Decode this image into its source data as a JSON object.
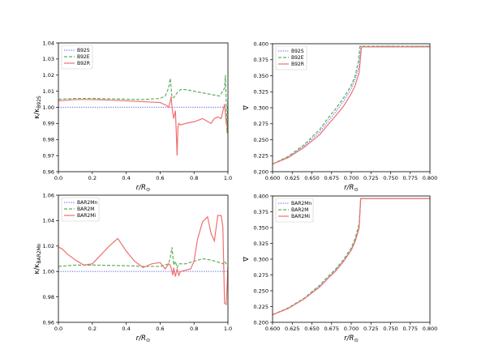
{
  "colors": {
    "blue": "#7070f0",
    "green": "#5fae5f",
    "red": "#f07070"
  },
  "chart_data": [
    {
      "id": "top-left",
      "type": "line",
      "xlabel": "r/R⊙",
      "ylabel": "κ/κB92S",
      "xlim": [
        0,
        1
      ],
      "ylim": [
        0.96,
        1.04
      ],
      "xticks": [
        "0.0",
        "0.2",
        "0.4",
        "0.6",
        "0.8",
        "1.0"
      ],
      "yticks": [
        "0.96",
        "0.97",
        "0.98",
        "0.99",
        "1.00",
        "1.01",
        "1.02",
        "1.03",
        "1.04"
      ],
      "legend_position": "top-left",
      "series": [
        {
          "name": "B92S",
          "style": "dotted",
          "color": "blue",
          "x": [
            0,
            1
          ],
          "y": [
            1.0,
            1.0
          ]
        },
        {
          "name": "B92E",
          "style": "dashed",
          "color": "green",
          "x": [
            0,
            0.1,
            0.2,
            0.3,
            0.4,
            0.5,
            0.6,
            0.63,
            0.65,
            0.66,
            0.67,
            0.68,
            0.7,
            0.72,
            0.75,
            0.8,
            0.85,
            0.9,
            0.95,
            0.97,
            0.98,
            0.985,
            0.99,
            0.995,
            1.0
          ],
          "y": [
            1.005,
            1.0055,
            1.0055,
            1.0053,
            1.005,
            1.0048,
            1.0055,
            1.007,
            1.012,
            1.018,
            1.006,
            1.006,
            1.009,
            1.011,
            1.011,
            1.01,
            1.009,
            1.008,
            1.007,
            1.01,
            1.012,
            1.02,
            1.003,
            0.984,
            1.005
          ]
        },
        {
          "name": "B92R",
          "style": "solid",
          "color": "red",
          "x": [
            0,
            0.1,
            0.2,
            0.3,
            0.4,
            0.5,
            0.6,
            0.64,
            0.65,
            0.66,
            0.665,
            0.67,
            0.68,
            0.69,
            0.695,
            0.7,
            0.705,
            0.71,
            0.72,
            0.75,
            0.8,
            0.85,
            0.9,
            0.92,
            0.94,
            0.96,
            0.98,
            0.985,
            0.99,
            0.995,
            1.0
          ],
          "y": [
            1.004,
            1.0048,
            1.0048,
            1.0045,
            1.004,
            1.0035,
            1.003,
            1.001,
            1.0,
            1.004,
            1.0065,
            1.0,
            0.993,
            0.998,
            0.985,
            0.97,
            0.988,
            0.99,
            0.989,
            0.99,
            0.991,
            0.993,
            0.99,
            0.993,
            0.994,
            0.993,
            1.002,
            0.996,
            0.99,
            0.988,
            0.986
          ]
        }
      ]
    },
    {
      "id": "top-right",
      "type": "line",
      "xlabel": "r/R⊙",
      "ylabel": "∇",
      "xlim": [
        0.6,
        0.8
      ],
      "ylim": [
        0.2,
        0.4
      ],
      "xticks": [
        "0.600",
        "0.625",
        "0.650",
        "0.675",
        "0.700",
        "0.725",
        "0.750",
        "0.775",
        "0.800"
      ],
      "yticks": [
        "0.200",
        "0.225",
        "0.250",
        "0.275",
        "0.300",
        "0.325",
        "0.350",
        "0.375",
        "0.400"
      ],
      "legend_position": "top-left",
      "series": [
        {
          "name": "B92S",
          "style": "dotted",
          "color": "blue",
          "x": [
            0.6,
            0.62,
            0.64,
            0.66,
            0.67,
            0.68,
            0.69,
            0.7,
            0.705,
            0.71,
            0.712,
            0.8
          ],
          "y": [
            0.212,
            0.223,
            0.24,
            0.262,
            0.278,
            0.293,
            0.31,
            0.33,
            0.345,
            0.365,
            0.396,
            0.396
          ]
        },
        {
          "name": "B92E",
          "style": "dashed",
          "color": "green",
          "x": [
            0.6,
            0.62,
            0.64,
            0.66,
            0.67,
            0.68,
            0.69,
            0.7,
            0.705,
            0.709,
            0.711,
            0.8
          ],
          "y": [
            0.212,
            0.224,
            0.242,
            0.266,
            0.283,
            0.298,
            0.315,
            0.335,
            0.35,
            0.372,
            0.396,
            0.396
          ]
        },
        {
          "name": "B92R",
          "style": "solid",
          "color": "red",
          "x": [
            0.6,
            0.62,
            0.64,
            0.66,
            0.67,
            0.68,
            0.69,
            0.7,
            0.705,
            0.71,
            0.713,
            0.8
          ],
          "y": [
            0.212,
            0.222,
            0.238,
            0.258,
            0.273,
            0.287,
            0.302,
            0.322,
            0.335,
            0.355,
            0.395,
            0.395
          ]
        }
      ]
    },
    {
      "id": "bottom-left",
      "type": "line",
      "xlabel": "r/R⊙",
      "ylabel": "κ/κBAR2Mn",
      "xlim": [
        0,
        1
      ],
      "ylim": [
        0.96,
        1.06
      ],
      "xticks": [
        "0.0",
        "0.2",
        "0.4",
        "0.6",
        "0.8",
        "1.0"
      ],
      "yticks": [
        "0.96",
        "0.98",
        "1.00",
        "1.02",
        "1.04",
        "1.06"
      ],
      "legend_position": "top-left",
      "series": [
        {
          "name": "BAR2Mn",
          "style": "dotted",
          "color": "blue",
          "x": [
            0,
            1
          ],
          "y": [
            1.0,
            1.0
          ]
        },
        {
          "name": "BAR2M",
          "style": "dashed",
          "color": "green",
          "x": [
            0,
            0.1,
            0.2,
            0.3,
            0.4,
            0.5,
            0.6,
            0.65,
            0.66,
            0.67,
            0.68,
            0.69,
            0.7,
            0.71,
            0.75,
            0.8,
            0.85,
            0.9,
            0.95,
            0.97,
            0.98,
            0.99,
            1.0
          ],
          "y": [
            1.004,
            1.005,
            1.005,
            1.0048,
            1.0045,
            1.004,
            1.004,
            1.006,
            1.011,
            1.019,
            1.005,
            1.008,
            1.003,
            1.006,
            1.006,
            1.008,
            1.01,
            1.009,
            1.007,
            1.006,
            1.008,
            1.006,
            1.005
          ]
        },
        {
          "name": "BAR2Mi",
          "style": "solid",
          "color": "red",
          "x": [
            0,
            0.02,
            0.05,
            0.1,
            0.15,
            0.2,
            0.25,
            0.3,
            0.35,
            0.4,
            0.45,
            0.5,
            0.55,
            0.6,
            0.63,
            0.65,
            0.66,
            0.67,
            0.675,
            0.68,
            0.69,
            0.7,
            0.71,
            0.72,
            0.75,
            0.78,
            0.8,
            0.82,
            0.85,
            0.88,
            0.9,
            0.92,
            0.94,
            0.96,
            0.97,
            0.98,
            0.99,
            1.0
          ],
          "y": [
            1.019,
            1.018,
            1.014,
            1.009,
            1.005,
            1.006,
            1.013,
            1.02,
            1.026,
            1.016,
            1.008,
            1.003,
            1.006,
            1.007,
            1.002,
            1.006,
            1.005,
            1.0,
            0.997,
            1.003,
            0.996,
            1.002,
            0.997,
            1.0,
            1.001,
            1.002,
            1.008,
            1.025,
            1.039,
            1.043,
            1.03,
            1.024,
            1.044,
            1.044,
            1.035,
            0.975,
            0.974,
            1.004
          ]
        }
      ]
    },
    {
      "id": "bottom-right",
      "type": "line",
      "xlabel": "r/R⊙",
      "ylabel": "∇",
      "xlim": [
        0.6,
        0.8
      ],
      "ylim": [
        0.2,
        0.4
      ],
      "xticks": [
        "0.600",
        "0.625",
        "0.650",
        "0.675",
        "0.700",
        "0.725",
        "0.750",
        "0.775",
        "0.800"
      ],
      "yticks": [
        "0.200",
        "0.225",
        "0.250",
        "0.275",
        "0.300",
        "0.325",
        "0.350",
        "0.375",
        "0.400"
      ],
      "legend_position": "top-left",
      "series": [
        {
          "name": "BAR2Mn",
          "style": "dotted",
          "color": "blue",
          "x": [
            0.6,
            0.62,
            0.64,
            0.66,
            0.67,
            0.68,
            0.69,
            0.7,
            0.705,
            0.71,
            0.712,
            0.8
          ],
          "y": [
            0.212,
            0.222,
            0.237,
            0.257,
            0.27,
            0.282,
            0.297,
            0.315,
            0.33,
            0.352,
            0.396,
            0.396
          ]
        },
        {
          "name": "BAR2M",
          "style": "dashed",
          "color": "green",
          "x": [
            0.6,
            0.62,
            0.64,
            0.66,
            0.67,
            0.68,
            0.69,
            0.7,
            0.705,
            0.71,
            0.712,
            0.8
          ],
          "y": [
            0.212,
            0.223,
            0.238,
            0.259,
            0.272,
            0.284,
            0.299,
            0.318,
            0.333,
            0.356,
            0.396,
            0.396
          ]
        },
        {
          "name": "BAR2Mi",
          "style": "solid",
          "color": "red",
          "x": [
            0.6,
            0.62,
            0.64,
            0.66,
            0.67,
            0.68,
            0.69,
            0.7,
            0.705,
            0.71,
            0.712,
            0.8
          ],
          "y": [
            0.212,
            0.222,
            0.237,
            0.256,
            0.269,
            0.281,
            0.296,
            0.314,
            0.328,
            0.349,
            0.396,
            0.396
          ]
        }
      ]
    }
  ]
}
